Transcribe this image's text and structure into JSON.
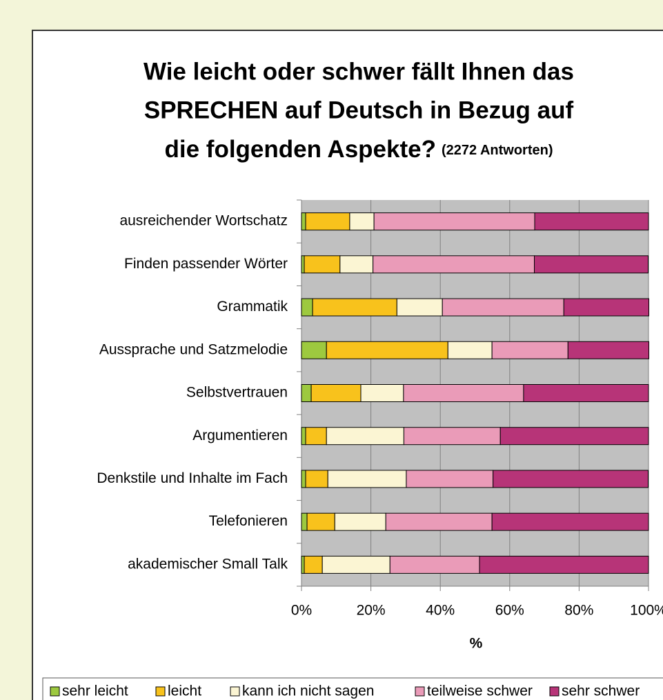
{
  "chart_data": {
    "type": "stacked_bar_horizontal",
    "title": [
      "Wie leicht oder schwer fällt Ihnen das",
      "SPRECHEN auf Deutsch in Bezug auf",
      "die folgenden Aspekte?"
    ],
    "subtitle": "(2272 Antworten)",
    "x_label": "%",
    "categories": [
      "ausreichender Wortschatz",
      "Finden passender Wörter",
      "Grammatik",
      "Aussprache und Satzmelodie",
      "Selbstvertrauen",
      "Argumentieren",
      "Denkstile und Inhalte im Fach",
      "Telefonieren",
      "akademischer Small Talk"
    ],
    "series": [
      {
        "name": "sehr leicht",
        "color": "#9dc93f",
        "values": [
          1.2,
          0.8,
          3.2,
          7.2,
          2.8,
          1.2,
          1.2,
          1.6,
          0.8
        ]
      },
      {
        "name": "leicht",
        "color": "#f8c21c",
        "values": [
          12.7,
          10.3,
          24.3,
          35.0,
          14.3,
          6.0,
          6.4,
          8.0,
          5.2
        ]
      },
      {
        "name": "kann ich nicht sagen",
        "color": "#fbf5d3",
        "values": [
          7.0,
          9.5,
          13.1,
          12.7,
          12.3,
          22.3,
          22.6,
          14.7,
          19.5
        ]
      },
      {
        "name": "teilweise schwer",
        "color": "#ea9bb8",
        "values": [
          46.3,
          46.5,
          35.0,
          21.9,
          34.6,
          27.8,
          25.0,
          30.6,
          25.8
        ]
      },
      {
        "name": "sehr schwer",
        "color": "#b73478",
        "values": [
          32.8,
          32.8,
          24.5,
          23.3,
          36.0,
          42.7,
          44.7,
          45.1,
          48.7
        ]
      }
    ],
    "xlim": [
      0,
      100
    ],
    "xticks": [
      {
        "value": 0,
        "label": "0%"
      },
      {
        "value": 20,
        "label": "20%"
      },
      {
        "value": 40,
        "label": "40%"
      },
      {
        "value": 60,
        "label": "60%"
      },
      {
        "value": 80,
        "label": "80%"
      },
      {
        "value": 100,
        "label": "100%"
      }
    ],
    "grid": true,
    "legend": "bottom"
  }
}
